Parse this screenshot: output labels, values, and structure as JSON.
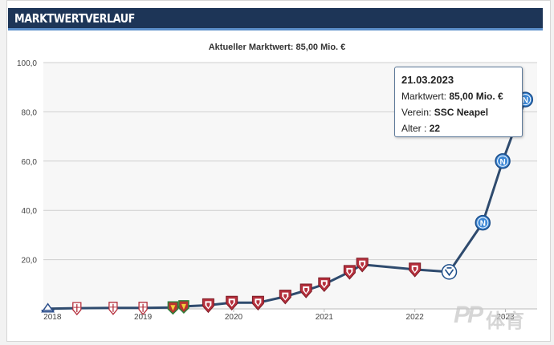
{
  "header": {
    "title": "MARKTWERTVERLAUF"
  },
  "chart_data": {
    "type": "line",
    "title": "Aktueller Marktwert: 85,00 Mio. €",
    "xlabel": "",
    "ylabel": "",
    "ylim": [
      0,
      100
    ],
    "y_ticks": [
      "100,0",
      "80,0",
      "60,0",
      "40,0",
      "20,0"
    ],
    "x_tick_labels": [
      "2018",
      "2019",
      "2020",
      "2021",
      "2022",
      "2023"
    ],
    "grid": true,
    "line_color": "#2f4b6e",
    "marker_colors": {
      "team": "#b52f3c",
      "napoli": "#3d88d6",
      "fill": "#ffffff"
    },
    "series": [
      {
        "values": [
          {
            "x": 2017.95,
            "y": 0.1,
            "marker": "crest-blue"
          },
          {
            "x": 2018.27,
            "y": 0.3,
            "marker": "crest-red"
          },
          {
            "x": 2018.67,
            "y": 0.4,
            "marker": "crest-red"
          },
          {
            "x": 2019.0,
            "y": 0.4,
            "marker": "crest-red"
          },
          {
            "x": 2019.33,
            "y": 0.6,
            "marker": "crest-green"
          },
          {
            "x": 2019.45,
            "y": 1.0,
            "marker": "crest-green"
          },
          {
            "x": 2019.72,
            "y": 1.5,
            "marker": "crest-shield"
          },
          {
            "x": 2019.98,
            "y": 2.5,
            "marker": "crest-shield"
          },
          {
            "x": 2020.27,
            "y": 2.5,
            "marker": "crest-shield"
          },
          {
            "x": 2020.57,
            "y": 5.0,
            "marker": "crest-shield"
          },
          {
            "x": 2020.8,
            "y": 7.5,
            "marker": "crest-shield"
          },
          {
            "x": 2021.0,
            "y": 10.0,
            "marker": "crest-shield"
          },
          {
            "x": 2021.28,
            "y": 15.0,
            "marker": "crest-shield"
          },
          {
            "x": 2021.42,
            "y": 18.0,
            "marker": "crest-shield"
          },
          {
            "x": 2022.0,
            "y": 16.0,
            "marker": "crest-shield"
          },
          {
            "x": 2022.38,
            "y": 15.0,
            "marker": "crest-lion"
          },
          {
            "x": 2022.75,
            "y": 35.0,
            "marker": "napoli"
          },
          {
            "x": 2022.97,
            "y": 60.0,
            "marker": "napoli"
          },
          {
            "x": 2023.22,
            "y": 85.0,
            "marker": "napoli"
          }
        ]
      }
    ],
    "tooltip": {
      "date": "21.03.2023",
      "value_label": "Marktwert:",
      "value": "85,00 Mio. €",
      "club_label": "Verein:",
      "club": "SSC Neapel",
      "age_label": "Alter :",
      "age": "22"
    }
  },
  "watermark": {
    "latin": "PP",
    "chinese": "体育"
  }
}
